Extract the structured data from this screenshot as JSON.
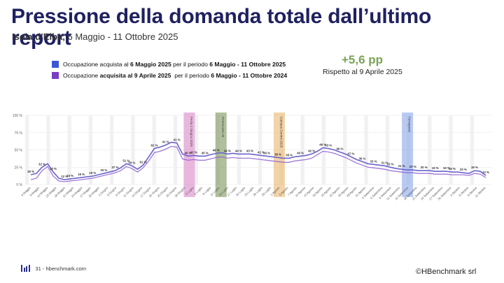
{
  "slide": {
    "title": "Pressione della domanda totale dall’ultimo report",
    "subtitle_bold": "Isola d’Elba,",
    "subtitle_rest": " 6 Maggio - 11 Ottobre 2025",
    "delta_value": "+5,6 pp",
    "delta_note": "Rispetto al 9 Aprile 2025",
    "page_label": "31 - hbenchmark.com",
    "copyright": "©HBenchmark srl"
  },
  "legend": [
    {
      "color": "#3b57d6",
      "parts": [
        [
          "Occupazione acquista al ",
          false
        ],
        [
          "6 Maggio 2025",
          true
        ],
        [
          " per il periodo ",
          false
        ],
        [
          "6 Maggio - 11 Ottobre 2025",
          true
        ]
      ]
    },
    {
      "color": "#7a3fc4",
      "parts": [
        [
          "Occupazione ",
          false
        ],
        [
          "acquisita al 9 Aprile 2025",
          true
        ],
        [
          "  per il periodo ",
          false
        ],
        [
          "6 Maggio - 11 Ottobre 2024",
          true
        ]
      ]
    }
  ],
  "colors": {
    "series_2025": "#6a63cc",
    "series_2024": "#8e62cf",
    "title": "#1f2160",
    "delta": "#7aa356"
  },
  "chart_data": {
    "type": "line",
    "ylim": [
      0,
      100
    ],
    "yticks": [
      "0 %",
      "25 %",
      "50 %",
      "75 %",
      "100 %"
    ],
    "ytick_values": [
      0,
      25,
      50,
      75,
      100
    ],
    "grid": true,
    "x_labels": [
      "6 Maggio",
      "9 Maggio",
      "12 Maggio",
      "15 Maggio",
      "18 Maggio",
      "21 Maggio",
      "24 Maggio",
      "27 Maggio",
      "30 Maggio",
      "2 Giugno",
      "5 Giugno",
      "8 Giugno",
      "11 Giugno",
      "14 Giugno",
      "17 Giugno",
      "20 Giugno",
      "23 Giugno",
      "26 Giugno",
      "29 Giugno",
      "2 Luglio",
      "5 Luglio",
      "8 Luglio",
      "11 Luglio",
      "14 Luglio",
      "17 Luglio",
      "20 Luglio",
      "23 Luglio",
      "26 Luglio",
      "29 Luglio",
      "1 Agosto",
      "4 Agosto",
      "7 Agosto",
      "10 Agosto",
      "13 Agosto",
      "16 Agosto",
      "19 Agosto",
      "22 Agosto",
      "25 Agosto",
      "28 Agosto",
      "31 Agosto",
      "3 Settembre",
      "6 Settembre",
      "9 Settembre",
      "12 Settembre",
      "15 Settembre",
      "18 Settembre",
      "21 Settembre",
      "24 Settembre",
      "27 Settembre",
      "30 Settembre",
      "3 Ottobre",
      "6 Ottobre",
      "9 Ottobre",
      "11 Ottobre"
    ],
    "series": [
      {
        "values": [
          14,
          16,
          25,
          30,
          18,
          9,
          7,
          8,
          9,
          10,
          11,
          12,
          14,
          16,
          18,
          20,
          24,
          30,
          27,
          22,
          28,
          40,
          52,
          54,
          57,
          61,
          60,
          44,
          41,
          42,
          41,
          41,
          43,
          45,
          46,
          44,
          45,
          44,
          44,
          44,
          43,
          42,
          41,
          40,
          39,
          38,
          38,
          40,
          41,
          42,
          44,
          48,
          53,
          52,
          50,
          47,
          44,
          40,
          36,
          33,
          30,
          29,
          28,
          27,
          25,
          23,
          22,
          21,
          21,
          20,
          20,
          20,
          19,
          19,
          19,
          18,
          18,
          17,
          16,
          20,
          19,
          13
        ]
      },
      {
        "values": [
          7,
          9,
          20,
          26,
          12,
          5,
          4,
          5,
          6,
          7,
          8,
          9,
          11,
          13,
          15,
          17,
          20,
          26,
          23,
          18,
          24,
          34,
          46,
          48,
          51,
          55,
          54,
          37,
          35,
          36,
          35,
          35,
          37,
          39,
          40,
          38,
          39,
          38,
          38,
          38,
          37,
          36,
          35,
          34,
          33,
          32,
          32,
          34,
          35,
          36,
          38,
          43,
          48,
          47,
          45,
          42,
          39,
          35,
          31,
          28,
          25,
          24,
          23,
          22,
          20,
          19,
          18,
          17,
          17,
          16,
          16,
          16,
          15,
          15,
          15,
          14,
          14,
          14,
          13,
          16,
          15,
          10
        ]
      }
    ],
    "data_labels": [
      "18 %",
      "32 %",
      "10 %",
      "12 %",
      "15 %",
      "16 %",
      "19 %",
      "33 %",
      "37 %",
      "51 %",
      "56 %",
      "61 %",
      "62 %",
      "41 %",
      "41 %",
      "40 %",
      "42 %",
      "45 %",
      "46 %",
      "44 %",
      "44 %",
      "43 %",
      "41 %",
      "39 %",
      "38 %",
      "38 %",
      "40 %",
      "42 %",
      "46 %",
      "53 %",
      "49 %",
      "47 %",
      "36 %",
      "33 %",
      "31 %",
      "23 %",
      "21 %",
      "20 %",
      "20 %",
      "19 %",
      "19 %",
      "18 %",
      "20 %",
      "19 %",
      "13 %"
    ],
    "bands": [
      {
        "label": "Festa 2 Giugno 2025",
        "color": "#d77bc3",
        "pos": 0.352
      },
      {
        "label": "Pentecoste 25",
        "color": "#6f8a4a",
        "pos": 0.42
      },
      {
        "label": "Campus Domini 2025",
        "color": "#e8b061",
        "pos": 0.545
      },
      {
        "label": "Ferragosto",
        "color": "#7f9fe8",
        "pos": 0.82
      }
    ]
  }
}
